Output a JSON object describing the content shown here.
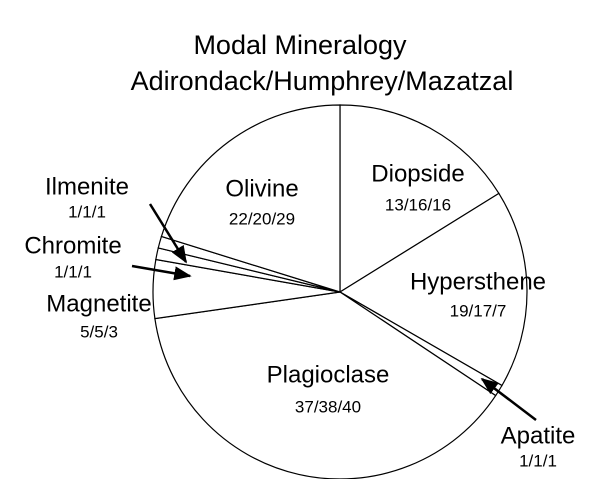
{
  "chart_data": {
    "type": "pie",
    "title": "Modal Mineralogy",
    "subtitle": "Adirondack/Humphrey/Mazatzal",
    "categories": [
      "Diopside",
      "Hypersthene",
      "Apatite",
      "Plagioclase",
      "Magnetite",
      "Chromite",
      "Ilmenite",
      "Olivine"
    ],
    "values": [
      16,
      17,
      1,
      38,
      5,
      1,
      1,
      20
    ],
    "value_labels": [
      "13/16/16",
      "19/17/7",
      "1/1/1",
      "37/38/40",
      "5/5/3",
      "1/1/1",
      "1/1/1",
      "22/20/29"
    ],
    "color": "#ffffff"
  }
}
